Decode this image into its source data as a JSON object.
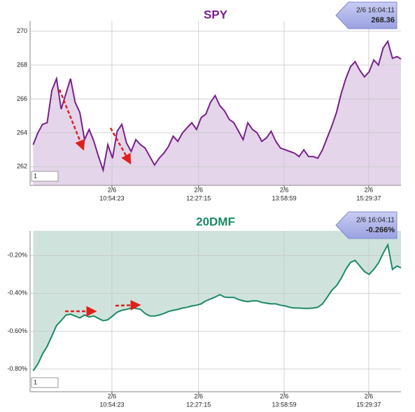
{
  "chart_data": [
    {
      "type": "line",
      "title": "SPY",
      "color": "#7a1f8c",
      "area_color": "#e4d5ea",
      "area_fill": "below",
      "grid": true,
      "callout": {
        "time": "2/6 16:04:11",
        "value_label": "268.36"
      },
      "input_text": "1",
      "x": [
        34200,
        34500,
        34800,
        35100,
        35400,
        35700,
        36000,
        36300,
        36600,
        36900,
        37200,
        37500,
        37800,
        38100,
        38400,
        38700,
        39000,
        39300,
        39600,
        39900,
        40200,
        40500,
        40800,
        41100,
        41400,
        41700,
        42000,
        42300,
        42600,
        42900,
        43200,
        43500,
        43800,
        44100,
        44400,
        44700,
        45000,
        45300,
        45600,
        45900,
        46200,
        46500,
        46800,
        47100,
        47400,
        47700,
        48000,
        48300,
        48600,
        48900,
        49200,
        49500,
        49800,
        50100,
        50400,
        50700,
        51000,
        51300,
        51600,
        51900,
        52200,
        52500,
        52800,
        53100,
        53400,
        53700,
        54000,
        54300,
        54600,
        54900,
        55200,
        55500,
        55800,
        56100,
        56400,
        56700,
        57000,
        57300,
        57600,
        57851
      ],
      "values": [
        263.3,
        264.0,
        264.5,
        264.6,
        266.5,
        267.2,
        265.4,
        266.3,
        267.2,
        265.8,
        265.2,
        263.6,
        264.2,
        263.5,
        262.6,
        261.8,
        263.3,
        262.5,
        264.1,
        264.5,
        263.4,
        262.9,
        263.6,
        263.3,
        263.1,
        262.6,
        262.1,
        262.5,
        262.8,
        263.2,
        263.8,
        263.5,
        264.0,
        264.3,
        264.6,
        264.2,
        264.9,
        265.1,
        265.8,
        266.2,
        265.6,
        265.3,
        264.8,
        264.6,
        264.1,
        263.6,
        264.6,
        264.2,
        264.0,
        263.5,
        263.7,
        264.1,
        263.5,
        263.1,
        263.0,
        262.9,
        262.8,
        262.6,
        263.0,
        262.6,
        262.6,
        262.5,
        263.0,
        263.7,
        264.4,
        265.2,
        266.3,
        267.2,
        267.9,
        268.2,
        267.7,
        267.3,
        267.6,
        268.3,
        268.0,
        269.0,
        269.4,
        268.4,
        268.5,
        268.36
      ],
      "xlim": [
        34000,
        57851
      ],
      "xticks": [
        {
          "value": 39263,
          "date": "2/6",
          "label": "10:54:23"
        },
        {
          "value": 44835,
          "date": "2/6",
          "label": "12:27:15"
        },
        {
          "value": 50339,
          "date": "2/6",
          "label": "13:58:59"
        },
        {
          "value": 55777,
          "date": "2/6",
          "label": "15:29:37"
        }
      ],
      "ylim": [
        260.9,
        270.6
      ],
      "yticks": [
        262,
        264,
        266,
        268,
        270
      ]
    },
    {
      "type": "line",
      "title": "20DMF",
      "color": "#1c8a62",
      "area_color": "#cfe3dc",
      "area_fill": "above",
      "grid": true,
      "callout": {
        "time": "2/6 16:04:11",
        "value_label": "-0.266%"
      },
      "input_text": "1",
      "x": [
        34200,
        34500,
        34800,
        35100,
        35400,
        35700,
        36000,
        36300,
        36600,
        36900,
        37200,
        37500,
        37800,
        38100,
        38400,
        38700,
        39000,
        39300,
        39600,
        39900,
        40200,
        40500,
        40800,
        41100,
        41400,
        41700,
        42000,
        42300,
        42600,
        42900,
        43200,
        43500,
        43800,
        44100,
        44400,
        44700,
        45000,
        45300,
        45600,
        45900,
        46200,
        46500,
        46800,
        47100,
        47400,
        47700,
        48000,
        48300,
        48600,
        48900,
        49200,
        49500,
        49800,
        50100,
        50400,
        50700,
        51000,
        51300,
        51600,
        51900,
        52200,
        52500,
        52800,
        53100,
        53400,
        53700,
        54000,
        54300,
        54600,
        54900,
        55200,
        55500,
        55800,
        56100,
        56400,
        56700,
        57000,
        57300,
        57600,
        57851
      ],
      "values": [
        -0.81,
        -0.774,
        -0.72,
        -0.68,
        -0.626,
        -0.57,
        -0.545,
        -0.515,
        -0.51,
        -0.52,
        -0.53,
        -0.515,
        -0.525,
        -0.52,
        -0.533,
        -0.545,
        -0.54,
        -0.52,
        -0.5,
        -0.49,
        -0.485,
        -0.478,
        -0.48,
        -0.485,
        -0.507,
        -0.52,
        -0.52,
        -0.515,
        -0.507,
        -0.496,
        -0.49,
        -0.485,
        -0.478,
        -0.474,
        -0.467,
        -0.463,
        -0.456,
        -0.44,
        -0.43,
        -0.42,
        -0.407,
        -0.42,
        -0.422,
        -0.422,
        -0.433,
        -0.44,
        -0.444,
        -0.44,
        -0.44,
        -0.448,
        -0.452,
        -0.456,
        -0.456,
        -0.463,
        -0.467,
        -0.474,
        -0.478,
        -0.478,
        -0.48,
        -0.48,
        -0.478,
        -0.474,
        -0.456,
        -0.422,
        -0.385,
        -0.36,
        -0.322,
        -0.274,
        -0.237,
        -0.226,
        -0.256,
        -0.285,
        -0.3,
        -0.274,
        -0.24,
        -0.189,
        -0.144,
        -0.274,
        -0.256,
        -0.266
      ],
      "xlim": [
        34000,
        57851
      ],
      "xticks": [
        {
          "value": 39263,
          "date": "2/6",
          "label": "10:54:23"
        },
        {
          "value": 44835,
          "date": "2/6",
          "label": "12:27:15"
        },
        {
          "value": 50339,
          "date": "2/6",
          "label": "13:58:59"
        },
        {
          "value": 55777,
          "date": "2/6",
          "label": "15:29:37"
        }
      ],
      "ylim": [
        -0.92,
        -0.07
      ],
      "yticks": [
        {
          "value": -0.8,
          "label": "-0.80%"
        },
        {
          "value": -0.6,
          "label": "-0.60%"
        },
        {
          "value": -0.4,
          "label": "-0.40%"
        },
        {
          "value": -0.2,
          "label": "-0.20%"
        }
      ]
    }
  ]
}
